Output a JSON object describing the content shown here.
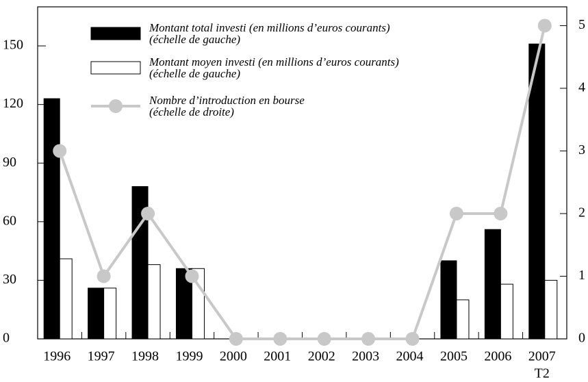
{
  "chart_data": {
    "type": "bar_line",
    "categories": [
      "1996",
      "1997",
      "1998",
      "1999",
      "2000",
      "2001",
      "2002",
      "2003",
      "2004",
      "2005",
      "2006",
      "2007"
    ],
    "last_category_note": "T2",
    "series": [
      {
        "name": "Montant total investi (en millions d’euros courants)",
        "name_note": "(échelle de gauche)",
        "color": "#000000",
        "type": "bar",
        "values": [
          123,
          26,
          78,
          36,
          0,
          0,
          0,
          0,
          0,
          40,
          56,
          151
        ]
      },
      {
        "name": "Montant moyen investi (en millions d’euros courants)",
        "name_note": "(échelle de gauche)",
        "color": "#ffffff",
        "type": "bar",
        "values": [
          41,
          26,
          38,
          36,
          0,
          0,
          0,
          0,
          0,
          20,
          28,
          30
        ]
      },
      {
        "name": "Nombre d’introduction en bourse",
        "name_note": "(échelle de droite)",
        "color": "#c8c8c8",
        "type": "line",
        "axis": "y2",
        "values": [
          3,
          1,
          2,
          1,
          0,
          0,
          0,
          0,
          0,
          2,
          2,
          5
        ]
      }
    ],
    "ylim": [
      0,
      170
    ],
    "yticks": [
      0,
      30,
      60,
      90,
      120,
      150
    ],
    "y2lim": [
      0,
      5.3
    ],
    "y2ticks": [
      0,
      1,
      2,
      3,
      4,
      5
    ]
  }
}
